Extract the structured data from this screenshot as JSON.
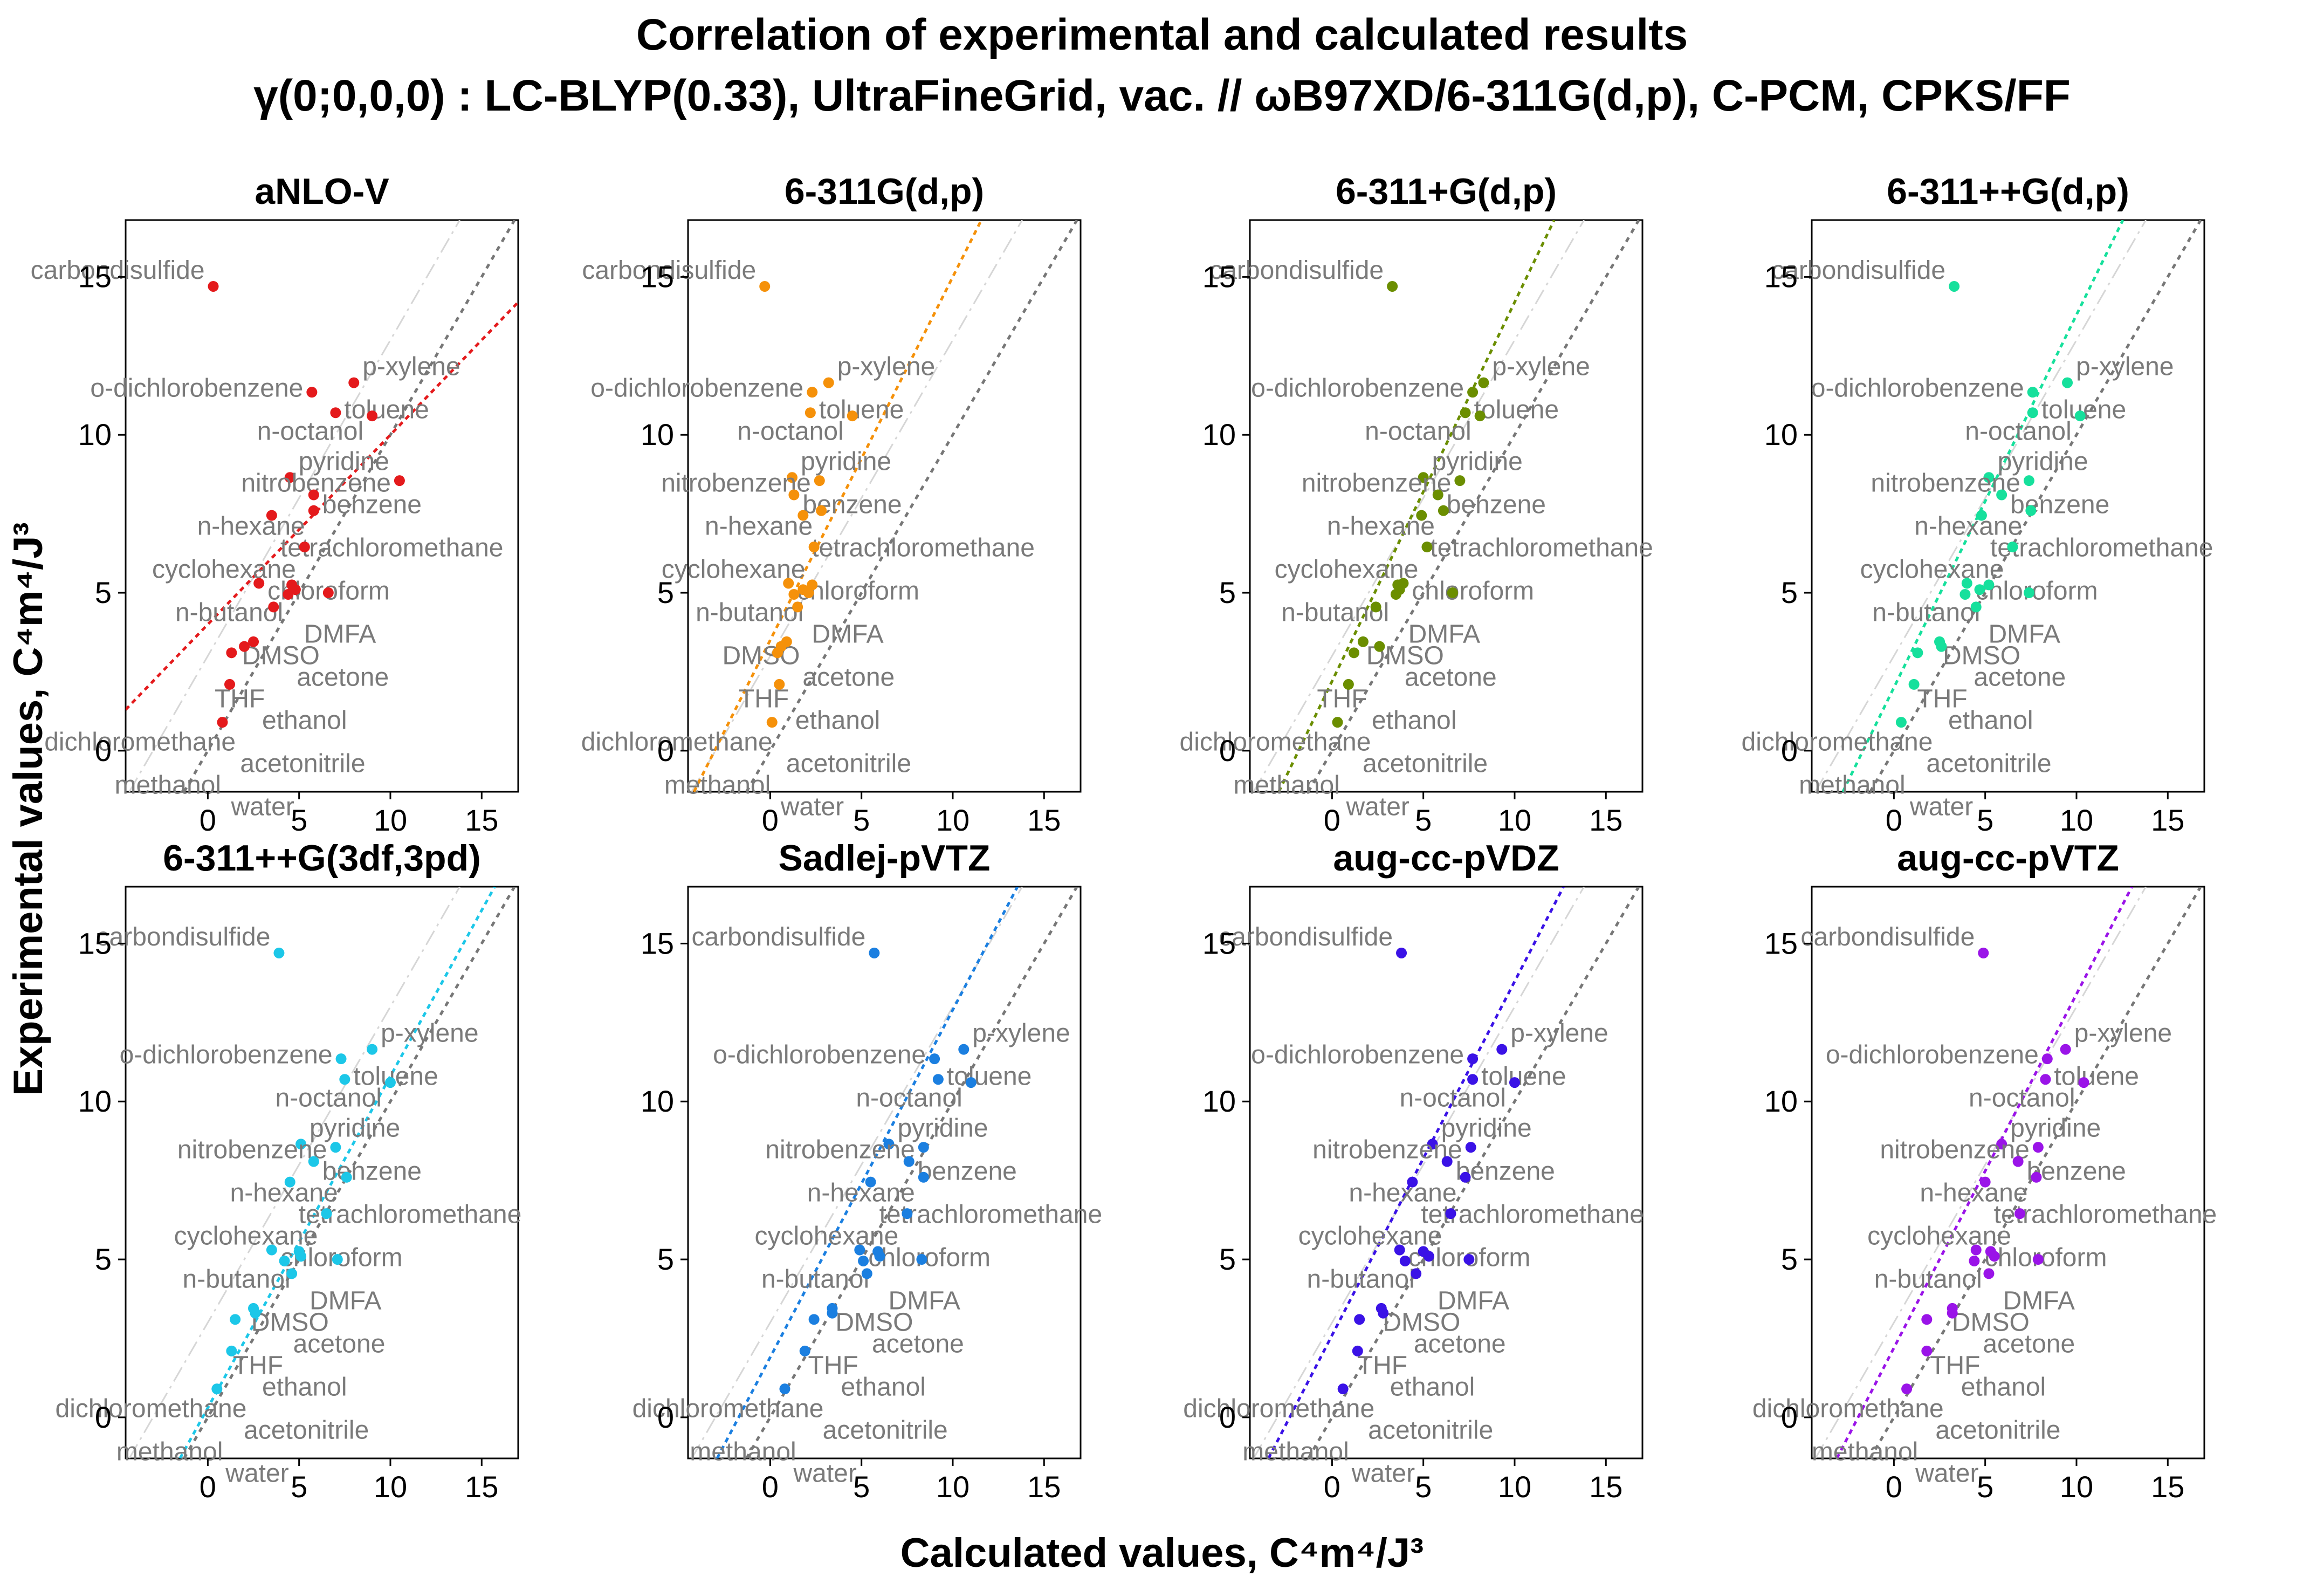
{
  "title_lines": [
    "Correlation of experimental and calculated results",
    "γ(0;0,0,0) : LC-BLYP(0.33), UltraFineGrid, vac. // ωB97XD/6-311G(d,p), C-PCM, CPKS/FF"
  ],
  "xlabel": "Calculated values, C⁴m⁴/J³",
  "ylabel": "Experimental values, C⁴m⁴/J³",
  "experimental": {
    "carbondisulfide": 14.7,
    "o-dichlorobenzene": 11.35,
    "p-xylene": 11.65,
    "toluene": 10.7,
    "n-octanol": 10.6,
    "pyridine": 8.65,
    "benzene": 8.1,
    "nitrobenzene": 8.55,
    "tetrachloromethane": 7.45,
    "n-hexane": 7.6,
    "cyclohexane": 6.45,
    "chloroform": 5.3,
    "n-butanol": 5.25,
    "acetone": 4.95,
    "DMSO": 5.0,
    "DMFA": 5.1,
    "THF": 4.55,
    "ethanol": 3.45,
    "acetonitrile": 3.1,
    "dichloromethane": 3.3,
    "methanol": 2.1,
    "water": 0.9
  },
  "chart_data": [
    {
      "type": "scatter",
      "title": "aNLO-V",
      "color": "#e41a1c",
      "fit": {
        "slope": 0.6,
        "intercept": 4.0
      },
      "xlim": [
        -4.5,
        17
      ],
      "ylim": [
        -1.3,
        16.8
      ],
      "xticks": [
        0,
        5,
        10,
        15
      ],
      "yticks": [
        0,
        5,
        10,
        15
      ],
      "identity_line": true,
      "reference_line_offset": 3.0,
      "x": {
        "carbondisulfide": 0.3,
        "o-dichlorobenzene": 5.7,
        "p-xylene": 8.0,
        "toluene": 7.0,
        "n-octanol": 9.0,
        "pyridine": 4.5,
        "benzene": 5.8,
        "nitrobenzene": 10.5,
        "tetrachloromethane": 3.5,
        "n-hexane": 5.8,
        "cyclohexane": 5.3,
        "chloroform": 2.8,
        "n-butanol": 4.6,
        "acetone": 4.4,
        "DMSO": 6.6,
        "DMFA": 4.8,
        "THF": 3.6,
        "ethanol": 2.5,
        "acetonitrile": 1.3,
        "dichloromethane": 2.0,
        "methanol": 1.2,
        "water": 0.8
      }
    },
    {
      "type": "scatter",
      "title": "6-311G(d,p)",
      "color": "#f5910a",
      "fit": {
        "slope": 1.15,
        "intercept": 3.5
      },
      "xlim": [
        -4.5,
        17
      ],
      "ylim": [
        -1.3,
        16.8
      ],
      "xticks": [
        0,
        5,
        10,
        15
      ],
      "yticks": [
        0,
        5,
        10,
        15
      ],
      "identity_line": true,
      "reference_line_offset": 3.0,
      "x": {
        "carbondisulfide": -0.3,
        "o-dichlorobenzene": 2.3,
        "p-xylene": 3.2,
        "toluene": 2.2,
        "n-octanol": 4.5,
        "pyridine": 1.2,
        "benzene": 1.3,
        "nitrobenzene": 2.7,
        "tetrachloromethane": 1.8,
        "n-hexane": 2.8,
        "cyclohexane": 2.4,
        "chloroform": 1.0,
        "n-butanol": 2.3,
        "acetone": 1.3,
        "DMSO": 2.1,
        "DMFA": 1.8,
        "THF": 1.5,
        "ethanol": 0.9,
        "acetonitrile": 0.4,
        "dichloromethane": 0.6,
        "methanol": 0.5,
        "water": 0.1
      }
    },
    {
      "type": "scatter",
      "title": "6-311+G(d,p)",
      "color": "#6b8e00",
      "fit": {
        "slope": 1.2,
        "intercept": 2.2
      },
      "xlim": [
        -4.5,
        17
      ],
      "ylim": [
        -1.3,
        16.8
      ],
      "xticks": [
        0,
        5,
        10,
        15
      ],
      "yticks": [
        0,
        5,
        10,
        15
      ],
      "identity_line": true,
      "reference_line_offset": 3.0,
      "x": {
        "carbondisulfide": 3.3,
        "o-dichlorobenzene": 7.7,
        "p-xylene": 8.3,
        "toluene": 7.3,
        "n-octanol": 8.1,
        "pyridine": 5.0,
        "benzene": 5.8,
        "nitrobenzene": 7.0,
        "tetrachloromethane": 4.9,
        "n-hexane": 6.1,
        "cyclohexane": 5.2,
        "chloroform": 3.9,
        "n-butanol": 3.6,
        "acetone": 3.5,
        "DMSO": 6.6,
        "DMFA": 3.7,
        "THF": 2.4,
        "ethanol": 1.7,
        "acetonitrile": 1.2,
        "dichloromethane": 2.6,
        "methanol": 0.9,
        "water": 0.3
      }
    },
    {
      "type": "scatter",
      "title": "6-311++G(d,p)",
      "color": "#16e09c",
      "fit": {
        "slope": 1.18,
        "intercept": 2.0
      },
      "xlim": [
        -4.5,
        17
      ],
      "ylim": [
        -1.3,
        16.8
      ],
      "xticks": [
        0,
        5,
        10,
        15
      ],
      "yticks": [
        0,
        5,
        10,
        15
      ],
      "identity_line": true,
      "reference_line_offset": 3.0,
      "x": {
        "carbondisulfide": 3.3,
        "o-dichlorobenzene": 7.6,
        "p-xylene": 9.5,
        "toluene": 7.6,
        "n-octanol": 10.2,
        "pyridine": 5.2,
        "benzene": 5.9,
        "nitrobenzene": 7.4,
        "tetrachloromethane": 4.8,
        "n-hexane": 7.5,
        "cyclohexane": 6.5,
        "chloroform": 4.0,
        "n-butanol": 5.2,
        "acetone": 3.9,
        "DMSO": 7.4,
        "DMFA": 4.7,
        "THF": 4.5,
        "ethanol": 2.5,
        "acetonitrile": 1.3,
        "dichloromethane": 2.6,
        "methanol": 1.1,
        "water": 0.4
      }
    },
    {
      "type": "scatter",
      "title": "6-311++G(3df,3pd)",
      "color": "#1cc7e8",
      "fit": {
        "slope": 1.05,
        "intercept": 0.3
      },
      "xlim": [
        -4.5,
        17
      ],
      "ylim": [
        -1.3,
        16.8
      ],
      "xticks": [
        0,
        5,
        10,
        15
      ],
      "yticks": [
        0,
        5,
        10,
        15
      ],
      "identity_line": true,
      "reference_line_offset": 3.0,
      "x": {
        "carbondisulfide": 3.9,
        "o-dichlorobenzene": 7.3,
        "p-xylene": 9.0,
        "toluene": 7.5,
        "n-octanol": 10.0,
        "pyridine": 5.1,
        "benzene": 5.8,
        "nitrobenzene": 7.0,
        "tetrachloromethane": 4.5,
        "n-hexane": 7.6,
        "cyclohexane": 6.5,
        "chloroform": 3.5,
        "n-butanol": 5.0,
        "acetone": 4.2,
        "DMSO": 7.1,
        "DMFA": 5.1,
        "THF": 4.6,
        "ethanol": 2.5,
        "acetonitrile": 1.5,
        "dichloromethane": 2.6,
        "methanol": 1.3,
        "water": 0.5
      }
    },
    {
      "type": "scatter",
      "title": "Sadlej-pVTZ",
      "color": "#1b7fe0",
      "fit": {
        "slope": 1.1,
        "intercept": 1.9
      },
      "xlim": [
        -4.5,
        17
      ],
      "ylim": [
        -1.3,
        16.8
      ],
      "xticks": [
        0,
        5,
        10,
        15
      ],
      "yticks": [
        0,
        5,
        10,
        15
      ],
      "identity_line": true,
      "reference_line_offset": 3.0,
      "x": {
        "carbondisulfide": 5.7,
        "o-dichlorobenzene": 9.0,
        "p-xylene": 10.6,
        "toluene": 9.2,
        "n-octanol": 11.0,
        "pyridine": 6.5,
        "benzene": 7.6,
        "nitrobenzene": 8.4,
        "tetrachloromethane": 5.5,
        "n-hexane": 8.4,
        "cyclohexane": 7.5,
        "chloroform": 4.9,
        "n-butanol": 5.9,
        "acetone": 5.1,
        "DMSO": 8.3,
        "DMFA": 6.0,
        "THF": 5.3,
        "ethanol": 3.4,
        "acetonitrile": 2.4,
        "dichloromethane": 3.4,
        "methanol": 1.9,
        "water": 0.8
      }
    },
    {
      "type": "scatter",
      "title": "aug-cc-pVDZ",
      "color": "#3a12e6",
      "fit": {
        "slope": 1.12,
        "intercept": 2.6
      },
      "xlim": [
        -4.5,
        17
      ],
      "ylim": [
        -1.3,
        16.8
      ],
      "xticks": [
        0,
        5,
        10,
        15
      ],
      "yticks": [
        0,
        5,
        10,
        15
      ],
      "identity_line": true,
      "reference_line_offset": 3.0,
      "x": {
        "carbondisulfide": 3.8,
        "o-dichlorobenzene": 7.7,
        "p-xylene": 9.3,
        "toluene": 7.7,
        "n-octanol": 10.0,
        "pyridine": 5.5,
        "benzene": 6.3,
        "nitrobenzene": 7.6,
        "tetrachloromethane": 4.4,
        "n-hexane": 7.3,
        "cyclohexane": 6.5,
        "chloroform": 3.7,
        "n-butanol": 5.0,
        "acetone": 4.0,
        "DMSO": 7.5,
        "DMFA": 5.3,
        "THF": 4.6,
        "ethanol": 2.7,
        "acetonitrile": 1.5,
        "dichloromethane": 2.8,
        "methanol": 1.4,
        "water": 0.6
      }
    },
    {
      "type": "scatter",
      "title": "aug-cc-pVTZ",
      "color": "#9a14e8",
      "fit": {
        "slope": 1.12,
        "intercept": 2.2
      },
      "xlim": [
        -4.5,
        17
      ],
      "ylim": [
        -1.3,
        16.8
      ],
      "xticks": [
        0,
        5,
        10,
        15
      ],
      "yticks": [
        0,
        5,
        10,
        15
      ],
      "identity_line": true,
      "reference_line_offset": 3.0,
      "x": {
        "carbondisulfide": 4.9,
        "o-dichlorobenzene": 8.4,
        "p-xylene": 9.4,
        "toluene": 8.3,
        "n-octanol": 10.4,
        "pyridine": 5.9,
        "benzene": 6.8,
        "nitrobenzene": 7.9,
        "tetrachloromethane": 5.0,
        "n-hexane": 7.8,
        "cyclohexane": 6.9,
        "chloroform": 4.5,
        "n-butanol": 5.3,
        "acetone": 4.4,
        "DMSO": 7.9,
        "DMFA": 5.5,
        "THF": 5.2,
        "ethanol": 3.2,
        "acetonitrile": 1.8,
        "dichloromethane": 3.2,
        "methanol": 1.8,
        "water": 0.7
      }
    }
  ]
}
